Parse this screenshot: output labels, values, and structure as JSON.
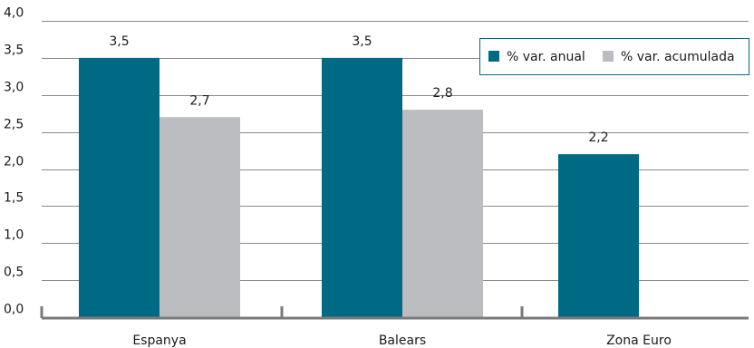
{
  "chart_data": {
    "type": "bar",
    "title": "",
    "xlabel": "",
    "ylabel": "",
    "categories": [
      "Espanya",
      "Balears",
      "Zona Euro"
    ],
    "series": [
      {
        "name": "% var. anual",
        "values": [
          3.5,
          3.5,
          2.2
        ],
        "value_labels": [
          "3,5",
          "3,5",
          "2,2"
        ],
        "color": "#006a85"
      },
      {
        "name": "% var. acumulada",
        "values": [
          2.7,
          2.8,
          null
        ],
        "value_labels": [
          "2,7",
          "2,8",
          null
        ],
        "color": "#bcbdc0"
      }
    ],
    "ylim": [
      0,
      4.0
    ],
    "yticks": [
      0,
      0.5,
      1.0,
      1.5,
      2.0,
      2.5,
      3.0,
      3.5,
      4.0
    ],
    "ytick_labels": [
      "0,0",
      "0,5",
      "1,0",
      "1,5",
      "2,0",
      "2,5",
      "3,0",
      "3,5",
      "4,0"
    ],
    "grid": true,
    "legend_position": "top-right",
    "colors": {
      "axis": "#7a7a7a",
      "grid": "#8a8a8a",
      "legend_border": "#006a85"
    }
  }
}
